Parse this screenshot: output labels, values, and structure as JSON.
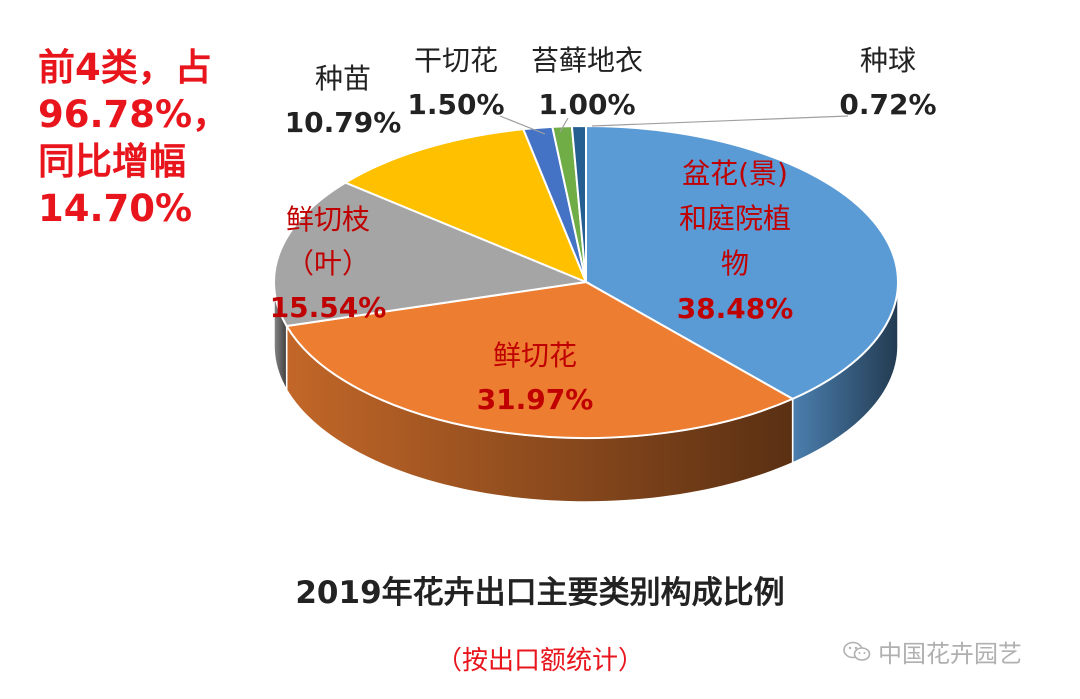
{
  "annotation": {
    "line1": "前4类，占",
    "line2": "96.78%，",
    "line3": "同比增幅",
    "line4": "14.70%"
  },
  "title": "2019年花卉出口主要类别构成比例",
  "subtitle": "（按出口额统计）",
  "watermark": "中国花卉园艺",
  "chart_data": {
    "type": "pie",
    "title": "2019年花卉出口主要类别构成比例",
    "subtitle": "（按出口额统计）",
    "style": "3d-exploded-none",
    "legend": "none",
    "slices": [
      {
        "name": "盆花(景)和庭院植物",
        "name_lines": [
          "盆花(景)",
          "和庭院植",
          "物"
        ],
        "value": 38.48,
        "label": "38.48%",
        "color": "#5b9bd5",
        "label_color": "#c00000"
      },
      {
        "name": "鲜切花",
        "name_lines": [
          "鲜切花"
        ],
        "value": 31.97,
        "label": "31.97%",
        "color": "#ed7d31",
        "label_color": "#c00000"
      },
      {
        "name": "鲜切枝（叶）",
        "name_lines": [
          "鲜切枝",
          "（叶）"
        ],
        "value": 15.54,
        "label": "15.54%",
        "color": "#a5a5a5",
        "label_color": "#c00000"
      },
      {
        "name": "种苗",
        "name_lines": [
          "种苗"
        ],
        "value": 10.79,
        "label": "10.79%",
        "color": "#ffc000",
        "label_color": "#222222"
      },
      {
        "name": "干切花",
        "name_lines": [
          "干切花"
        ],
        "value": 1.5,
        "label": "1.50%",
        "color": "#4472c4",
        "label_color": "#222222"
      },
      {
        "name": "苔藓地衣",
        "name_lines": [
          "苔藓地衣"
        ],
        "value": 1.0,
        "label": "1.00%",
        "color": "#70ad47",
        "label_color": "#222222"
      },
      {
        "name": "种球",
        "name_lines": [
          "种球"
        ],
        "value": 0.72,
        "label": "0.72%",
        "color": "#255e91",
        "label_color": "#222222"
      }
    ]
  }
}
